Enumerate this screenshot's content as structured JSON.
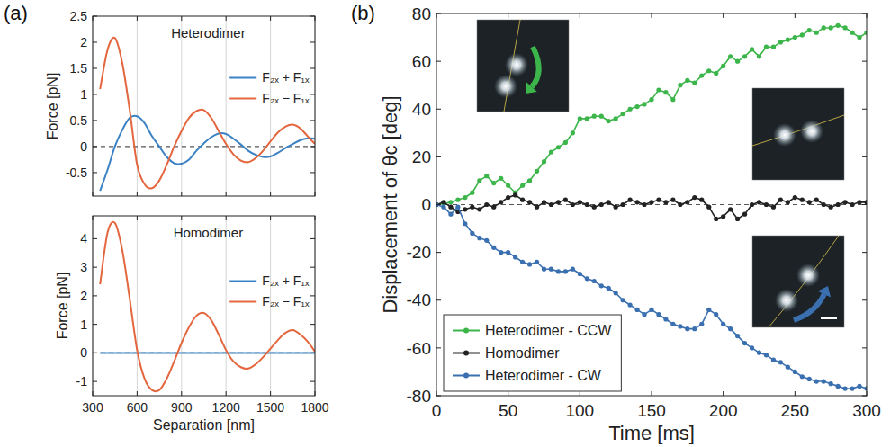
{
  "chart_data": [
    {
      "type": "line",
      "title": "Heterodimer",
      "annotations": [
        "(a)"
      ],
      "y_label": "Force [pN]",
      "x": [
        350,
        400,
        450,
        500,
        550,
        600,
        650,
        700,
        750,
        800,
        850,
        900,
        950,
        1000,
        1050,
        1100,
        1150,
        1200,
        1250,
        1300,
        1350,
        1400,
        1450,
        1500,
        1550,
        1600,
        1650,
        1700,
        1750,
        1800
      ],
      "series": [
        {
          "name": "F₂ₓ + F₁ₓ",
          "color": "#3b82c4",
          "values": [
            -0.85,
            -0.45,
            0.0,
            0.32,
            0.55,
            0.58,
            0.45,
            0.2,
            0.0,
            -0.2,
            -0.32,
            -0.33,
            -0.25,
            -0.08,
            0.06,
            0.18,
            0.25,
            0.24,
            0.15,
            0.04,
            -0.08,
            -0.16,
            -0.2,
            -0.19,
            -0.12,
            -0.03,
            0.05,
            0.12,
            0.16,
            0.15
          ]
        },
        {
          "name": "F₂ₓ − F₁ₓ",
          "color": "#e4663e",
          "values": [
            1.1,
            1.85,
            2.08,
            1.6,
            0.7,
            -0.35,
            -0.72,
            -0.8,
            -0.65,
            -0.35,
            0.0,
            0.3,
            0.55,
            0.68,
            0.7,
            0.55,
            0.3,
            0.05,
            -0.15,
            -0.27,
            -0.3,
            -0.22,
            -0.08,
            0.1,
            0.27,
            0.38,
            0.42,
            0.35,
            0.2,
            0.05
          ]
        }
      ],
      "xlim": [
        300,
        1800
      ],
      "xticks": [
        300,
        600,
        900,
        1200,
        1500,
        1800
      ],
      "ylim": [
        -0.95,
        2.5
      ],
      "yticks": [
        -0.5,
        0,
        0.5,
        1,
        1.5,
        2,
        2.5
      ],
      "grid": true,
      "legend": "right",
      "tick_labels": "y",
      "line_style": "solid"
    },
    {
      "type": "line",
      "title": "Homodimer",
      "x_label": "Separation [nm]",
      "y_label": "Force [pN]",
      "x": [
        350,
        400,
        450,
        500,
        550,
        600,
        650,
        700,
        750,
        800,
        850,
        900,
        950,
        1000,
        1050,
        1100,
        1150,
        1200,
        1250,
        1300,
        1350,
        1400,
        1450,
        1500,
        1550,
        1600,
        1650,
        1700,
        1750,
        1800
      ],
      "series": [
        {
          "name": "F₂ₓ + F₁ₓ",
          "color": "#3b82c4",
          "values": [
            0,
            0,
            0,
            0,
            0,
            0,
            0,
            0,
            0,
            0,
            0,
            0,
            0,
            0,
            0,
            0,
            0,
            0,
            0,
            0,
            0,
            0,
            0,
            0,
            0,
            0,
            0,
            0,
            0,
            0
          ]
        },
        {
          "name": "F₂ₓ − F₁ₓ",
          "color": "#e4663e",
          "values": [
            2.4,
            4.2,
            4.55,
            3.6,
            1.9,
            0.1,
            -0.9,
            -1.3,
            -1.3,
            -0.9,
            -0.3,
            0.35,
            0.9,
            1.3,
            1.4,
            1.15,
            0.65,
            0.1,
            -0.3,
            -0.5,
            -0.55,
            -0.4,
            -0.15,
            0.15,
            0.45,
            0.7,
            0.8,
            0.65,
            0.4,
            0.05
          ]
        }
      ],
      "xlim": [
        300,
        1800
      ],
      "xticks": [
        300,
        600,
        900,
        1200,
        1500,
        1800
      ],
      "ylim": [
        -1.5,
        4.8
      ],
      "yticks": [
        -1,
        0,
        1,
        2,
        3,
        4
      ],
      "grid": true,
      "legend": "right",
      "line_style": "solid"
    },
    {
      "type": "line",
      "annotations": [
        "(b)"
      ],
      "x_label": "Time [ms]",
      "y_label": "Displacement of θc [deg]",
      "x": [
        0,
        5,
        10,
        15,
        20,
        25,
        30,
        35,
        40,
        45,
        50,
        55,
        60,
        65,
        70,
        75,
        80,
        85,
        90,
        95,
        100,
        105,
        110,
        115,
        120,
        125,
        130,
        135,
        140,
        145,
        150,
        155,
        160,
        165,
        170,
        175,
        180,
        185,
        190,
        195,
        200,
        205,
        210,
        215,
        220,
        225,
        230,
        235,
        240,
        245,
        250,
        255,
        260,
        265,
        270,
        275,
        280,
        285,
        290,
        295,
        300
      ],
      "series": [
        {
          "name": "Heterodimer - CCW",
          "color": "#3cb54a",
          "values": [
            0,
            0.5,
            1,
            2,
            3,
            5,
            10,
            12,
            9,
            11,
            8,
            5,
            8,
            10,
            14,
            18,
            22,
            24,
            26,
            30,
            36,
            36,
            37,
            37,
            35,
            36,
            38,
            40,
            41,
            42,
            44,
            48,
            47,
            44,
            50,
            52,
            51,
            54,
            56,
            55,
            58,
            62,
            60,
            62,
            65,
            62,
            66,
            66,
            68,
            69,
            70,
            71,
            73,
            72,
            74,
            74,
            75,
            74,
            72,
            70,
            72
          ]
        },
        {
          "name": "Homodimer",
          "color": "#222222",
          "values": [
            0,
            1,
            -1,
            -3,
            -2,
            -1,
            -2,
            0,
            -1,
            1,
            3,
            4,
            2,
            1,
            -1,
            1,
            0,
            1,
            2,
            0,
            1,
            0,
            -1,
            0,
            1,
            -1,
            0,
            2,
            1,
            0,
            1,
            2,
            1,
            2,
            0,
            1,
            3,
            2,
            -1,
            -6,
            -5,
            -2,
            -6,
            -4,
            0,
            1,
            0,
            -1,
            2,
            1,
            3,
            2,
            1,
            2,
            0,
            -1,
            0,
            1,
            0,
            1,
            1
          ]
        },
        {
          "name": "Heterodimer - CW",
          "color": "#3a6fb0",
          "values": [
            0,
            -1,
            -4,
            -1,
            -8,
            -12,
            -14,
            -15,
            -18,
            -20,
            -20,
            -22,
            -24,
            -25,
            -24,
            -27,
            -27,
            -28,
            -28,
            -27,
            -29,
            -31,
            -32,
            -34,
            -35,
            -37,
            -40,
            -42,
            -44,
            -46,
            -44,
            -46,
            -48,
            -50,
            -51,
            -52,
            -52,
            -50,
            -44,
            -46,
            -50,
            -52,
            -55,
            -58,
            -60,
            -62,
            -63,
            -65,
            -66,
            -68,
            -70,
            -72,
            -73,
            -74,
            -74,
            -75,
            -76,
            -77,
            -77,
            -76,
            -77
          ]
        }
      ],
      "xlim": [
        0,
        300
      ],
      "xticks": [
        0,
        50,
        100,
        150,
        200,
        250,
        300
      ],
      "ylim": [
        -80,
        80
      ],
      "yticks": [
        -80,
        -60,
        -40,
        -20,
        0,
        20,
        40,
        60,
        80
      ],
      "grid": false,
      "legend": "lower left",
      "marker": "circle",
      "line_style": "solid"
    }
  ]
}
